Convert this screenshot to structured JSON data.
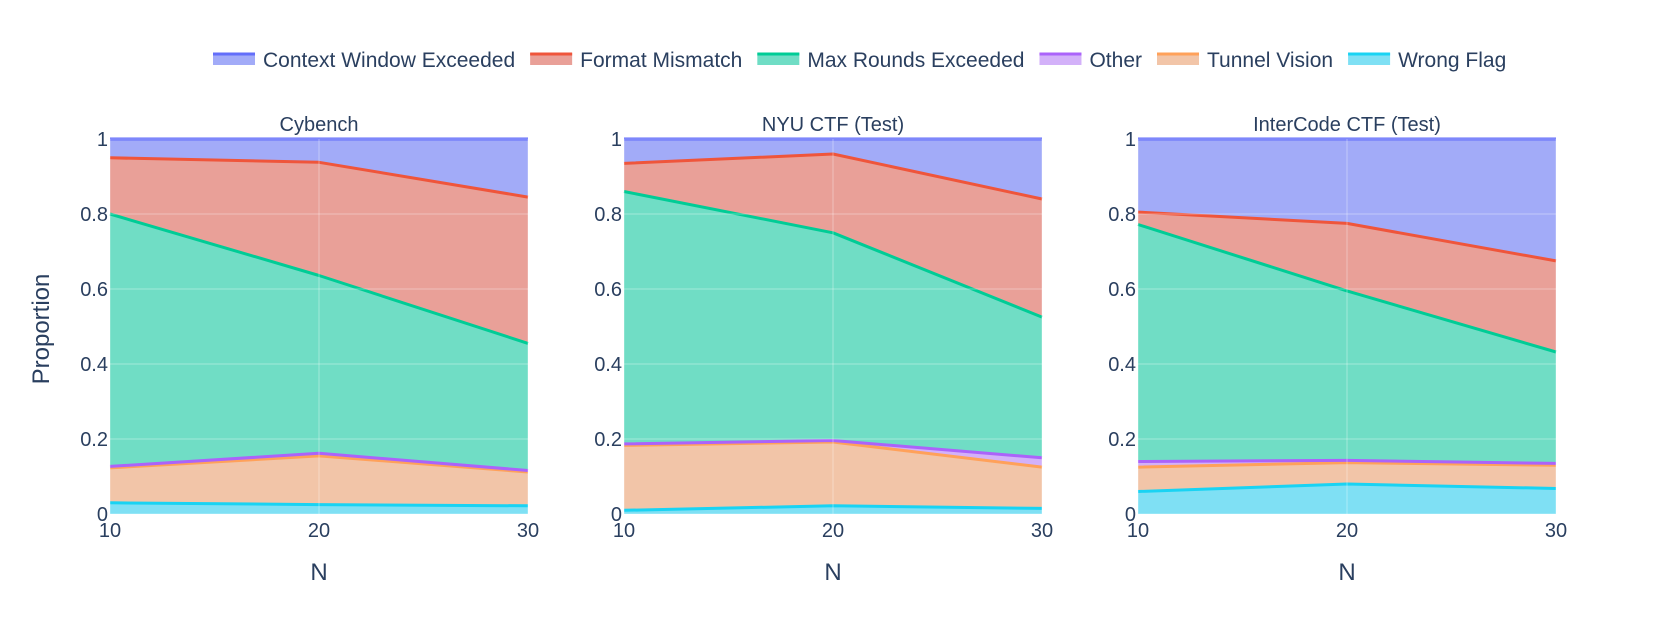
{
  "chart_data": {
    "type": "area",
    "stacked": true,
    "normalized": true,
    "ylabel": "Proportion",
    "xlabel": "N",
    "x": [
      10,
      20,
      30
    ],
    "xlim": [
      10,
      30
    ],
    "ylim": [
      0,
      1
    ],
    "x_ticks": [
      "10",
      "20",
      "30"
    ],
    "y_ticks": [
      "0",
      "0.2",
      "0.4",
      "0.6",
      "0.8",
      "1"
    ],
    "grid": true,
    "legend_position": "top",
    "series": [
      {
        "name": "Wrong Flag",
        "color": "#19d3f3",
        "fill": "#7fe0f4"
      },
      {
        "name": "Tunnel Vision",
        "color": "#ffa15a",
        "fill": "#f2c5a8"
      },
      {
        "name": "Other",
        "color": "#ab63fa",
        "fill": "#d3b1f9"
      },
      {
        "name": "Max Rounds Exceeded",
        "color": "#00cc96",
        "fill": "#70ddc5"
      },
      {
        "name": "Format Mismatch",
        "color": "#ef553b",
        "fill": "#e9a098"
      },
      {
        "name": "Context Window Exceeded",
        "color": "#636efa",
        "fill": "#a2abf8"
      }
    ],
    "legend_order": [
      "Context Window Exceeded",
      "Format Mismatch",
      "Max Rounds Exceeded",
      "Other",
      "Tunnel Vision",
      "Wrong Flag"
    ],
    "panels": [
      {
        "title": "Cybench",
        "values": {
          "Wrong Flag": [
            0.03,
            0.025,
            0.022
          ],
          "Tunnel Vision": [
            0.093,
            0.13,
            0.09
          ],
          "Other": [
            0.004,
            0.007,
            0.004
          ],
          "Max Rounds Exceeded": [
            0.673,
            0.474,
            0.339
          ],
          "Format Mismatch": [
            0.15,
            0.302,
            0.39
          ],
          "Context Window Exceeded": [
            0.05,
            0.062,
            0.155
          ]
        }
      },
      {
        "title": "NYU CTF (Test)",
        "values": {
          "Wrong Flag": [
            0.01,
            0.022,
            0.015
          ],
          "Tunnel Vision": [
            0.173,
            0.17,
            0.11
          ],
          "Other": [
            0.004,
            0.004,
            0.025
          ],
          "Max Rounds Exceeded": [
            0.673,
            0.554,
            0.375
          ],
          "Format Mismatch": [
            0.075,
            0.21,
            0.315
          ],
          "Context Window Exceeded": [
            0.065,
            0.04,
            0.16
          ]
        }
      },
      {
        "title": "InterCode CTF (Test)",
        "values": {
          "Wrong Flag": [
            0.06,
            0.08,
            0.068
          ],
          "Tunnel Vision": [
            0.065,
            0.057,
            0.062
          ],
          "Other": [
            0.015,
            0.006,
            0.005
          ],
          "Max Rounds Exceeded": [
            0.632,
            0.452,
            0.297
          ],
          "Format Mismatch": [
            0.033,
            0.18,
            0.243
          ],
          "Context Window Exceeded": [
            0.195,
            0.225,
            0.325
          ]
        }
      }
    ]
  }
}
